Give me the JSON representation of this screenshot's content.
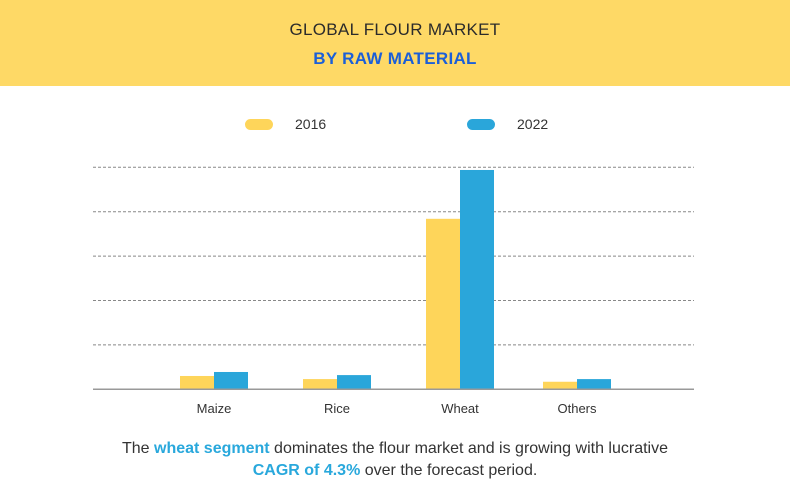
{
  "header": {
    "title": "GLOBAL FLOUR MARKET",
    "subtitle": "BY RAW MATERIAL"
  },
  "colors": {
    "header_bg": "#fed966",
    "s2016": "#fed55a",
    "s2022": "#2aa6da",
    "highlight": "#29a8dc"
  },
  "chart_data": {
    "type": "bar",
    "title": "GLOBAL FLOUR MARKET BY RAW MATERIAL",
    "categories": [
      "Maize",
      "Rice",
      "Wheat",
      "Others"
    ],
    "series": [
      {
        "name": "2016",
        "values": [
          0.3,
          0.23,
          3.84,
          0.17
        ]
      },
      {
        "name": "2022",
        "values": [
          0.39,
          0.32,
          4.94,
          0.23
        ]
      }
    ],
    "xlabel": "",
    "ylabel": "",
    "ylim": [
      0,
      5
    ],
    "grid": true,
    "legend": "top-center",
    "note": "no y-axis tick labels shown; values in gridline units"
  },
  "footer": {
    "p1": "The ",
    "h1": "wheat segment",
    "p2": " dominates the flour market and is growing with lucrative",
    "h2": "CAGR of 4.3%",
    "p3": " over the forecast period."
  }
}
